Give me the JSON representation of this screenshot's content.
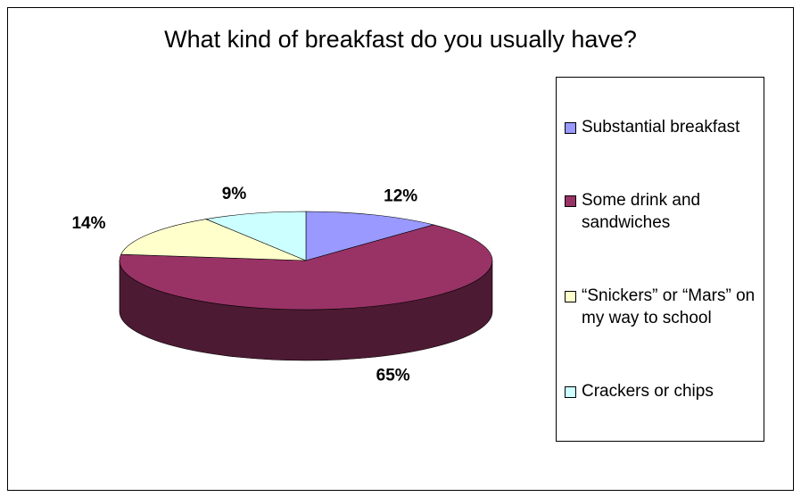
{
  "chart_data": {
    "type": "pie3d",
    "title": "What kind of breakfast do you usually have?",
    "categories": [
      "Substantial breakfast",
      "Some drink and sandwiches",
      "“Snickers” or “Mars” on my way to school",
      "Crackers or chips"
    ],
    "values": [
      12,
      65,
      14,
      9
    ],
    "value_labels": [
      "12%",
      "65%",
      "14%",
      "9%"
    ],
    "colors": [
      "#9999ff",
      "#993366",
      "#ffffcc",
      "#ccffff"
    ],
    "legend": "right"
  }
}
